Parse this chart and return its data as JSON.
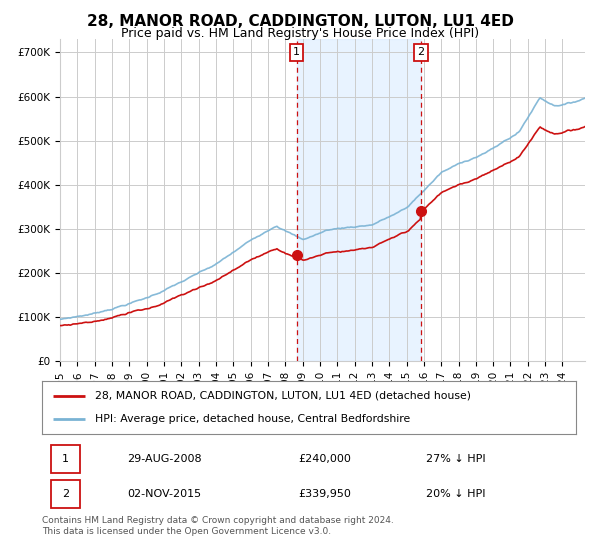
{
  "title": "28, MANOR ROAD, CADDINGTON, LUTON, LU1 4ED",
  "subtitle": "Price paid vs. HM Land Registry's House Price Index (HPI)",
  "ylabel_ticks": [
    "£0",
    "£100K",
    "£200K",
    "£300K",
    "£400K",
    "£500K",
    "£600K",
    "£700K"
  ],
  "ytick_vals": [
    0,
    100000,
    200000,
    300000,
    400000,
    500000,
    600000,
    700000
  ],
  "ylim": [
    0,
    730000
  ],
  "xlim_start": 1995.0,
  "xlim_end": 2025.3,
  "sale1_x": 2008.65,
  "sale1_y": 240000,
  "sale1_label": "1",
  "sale2_x": 2015.84,
  "sale2_y": 339950,
  "sale2_label": "2",
  "hpi_color": "#7ab3d4",
  "sale_color": "#cc1111",
  "shade_color": "#ddeeff",
  "vline_color": "#cc1111",
  "legend_sale_label": "28, MANOR ROAD, CADDINGTON, LUTON, LU1 4ED (detached house)",
  "legend_hpi_label": "HPI: Average price, detached house, Central Bedfordshire",
  "table_row1": [
    "1",
    "29-AUG-2008",
    "£240,000",
    "27% ↓ HPI"
  ],
  "table_row2": [
    "2",
    "02-NOV-2015",
    "£339,950",
    "20% ↓ HPI"
  ],
  "footnote": "Contains HM Land Registry data © Crown copyright and database right 2024.\nThis data is licensed under the Open Government Licence v3.0.",
  "bg_color": "#ffffff",
  "grid_color": "#cccccc",
  "title_fontsize": 11,
  "subtitle_fontsize": 9,
  "tick_fontsize": 7.5,
  "xtick_years": [
    1995,
    1996,
    1997,
    1998,
    1999,
    2000,
    2001,
    2002,
    2003,
    2004,
    2005,
    2006,
    2007,
    2008,
    2009,
    2010,
    2011,
    2012,
    2013,
    2014,
    2015,
    2016,
    2017,
    2018,
    2019,
    2020,
    2021,
    2022,
    2023,
    2024
  ]
}
